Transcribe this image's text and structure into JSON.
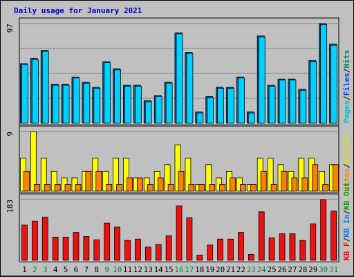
{
  "chart_data": [
    {
      "type": "bar",
      "title": "Daily usage for January 2021",
      "ylim": [
        0,
        97
      ],
      "yticks": [
        97
      ],
      "separator": "/",
      "legend": [
        {
          "text": "Pages",
          "color": "#00c0d0"
        },
        {
          "text": "Files",
          "color": "#0040ff"
        },
        {
          "text": "Hits",
          "color": "#008060"
        }
      ],
      "series": [
        {
          "color": "#0060a0",
          "values": [
            58,
            63,
            71,
            38,
            38,
            45,
            40,
            35,
            60,
            53,
            37,
            37,
            22,
            27,
            40,
            88,
            69,
            11,
            26,
            35,
            35,
            45,
            11,
            85,
            37,
            43,
            43,
            33,
            61,
            97,
            77
          ]
        },
        {
          "color": "#00d0ff",
          "values": [
            57,
            62,
            70,
            37,
            37,
            44,
            39,
            34,
            59,
            52,
            36,
            36,
            21,
            26,
            39,
            87,
            68,
            10,
            25,
            34,
            34,
            44,
            10,
            84,
            36,
            42,
            42,
            32,
            60,
            96,
            76
          ]
        }
      ]
    },
    {
      "type": "bar",
      "ylim": [
        0,
        9
      ],
      "yticks": [
        9
      ],
      "legend": [
        {
          "text": "Sites",
          "color": "#ff8000"
        },
        {
          "text": "Visits",
          "color": "#e0e000"
        }
      ],
      "series": [
        {
          "color": "#ffff00",
          "values": [
            5,
            9,
            5,
            3,
            2,
            2,
            3,
            5,
            3,
            5,
            5,
            2,
            2,
            3,
            4,
            7,
            5,
            1,
            4,
            2,
            3,
            2,
            1,
            5,
            5,
            4,
            3,
            5,
            5,
            3,
            4
          ]
        },
        {
          "color": "#ff8000",
          "values": [
            3,
            1,
            1,
            1,
            1,
            1,
            3,
            3,
            1,
            1,
            2,
            2,
            1,
            2,
            1,
            3,
            1,
            1,
            1,
            1,
            2,
            1,
            1,
            3,
            1,
            3,
            2,
            2,
            4,
            1,
            4
          ]
        }
      ]
    },
    {
      "type": "bar",
      "ylim": [
        0,
        183
      ],
      "yticks": [
        183
      ],
      "legend": [
        {
          "text": "KB F",
          "color": "#ff0000"
        },
        {
          "text": "KB In",
          "color": "#0080ff"
        },
        {
          "text": "KB Out",
          "color": "#00a000"
        }
      ],
      "categories": [
        "1",
        "2",
        "3",
        "4",
        "5",
        "6",
        "7",
        "8",
        "9",
        "10",
        "11",
        "12",
        "13",
        "14",
        "15",
        "16",
        "17",
        "18",
        "19",
        "20",
        "21",
        "22",
        "23",
        "24",
        "25",
        "26",
        "27",
        "28",
        "29",
        "30",
        "31"
      ],
      "label_colors": [
        "#000000",
        "#008040",
        "#008040",
        "#000000",
        "#000000",
        "#000000",
        "#000000",
        "#000000",
        "#008040",
        "#008040",
        "#000000",
        "#000000",
        "#000000",
        "#000000",
        "#000000",
        "#008040",
        "#008040",
        "#000000",
        "#000000",
        "#000000",
        "#000000",
        "#000000",
        "#008040",
        "#008040",
        "#000000",
        "#000000",
        "#000000",
        "#000000",
        "#000000",
        "#008040",
        "#008040"
      ],
      "series": [
        {
          "color": "#ee1111",
          "values": [
            106,
            118,
            130,
            70,
            70,
            84,
            72,
            62,
            112,
            100,
            60,
            64,
            40,
            48,
            74,
            164,
            128,
            16,
            46,
            64,
            64,
            84,
            18,
            146,
            68,
            80,
            80,
            60,
            110,
            182,
            148
          ]
        }
      ]
    }
  ]
}
